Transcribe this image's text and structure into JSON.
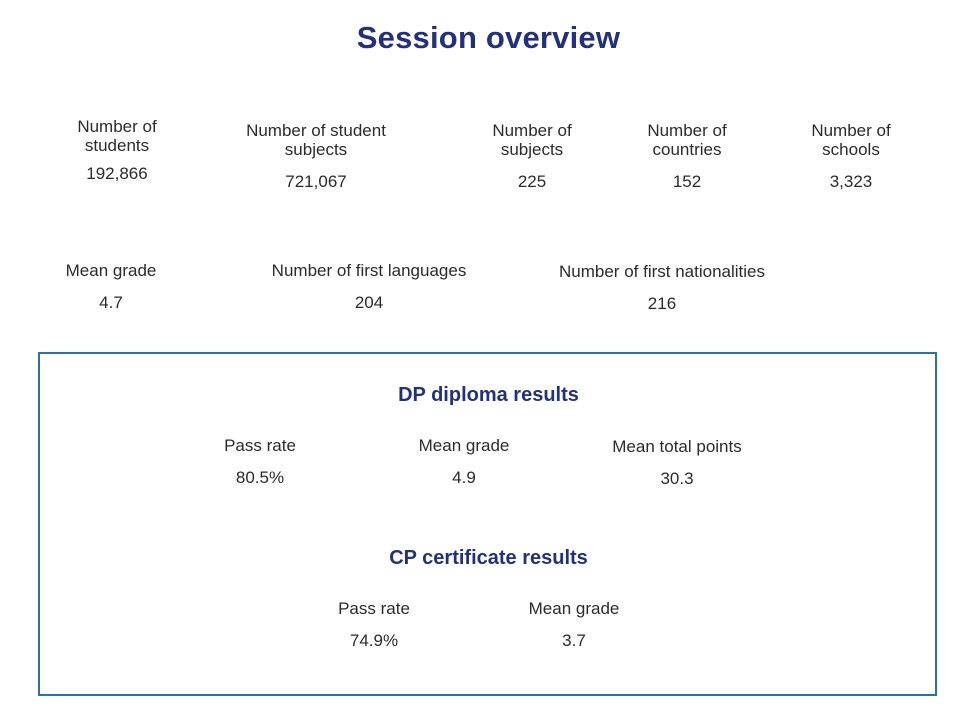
{
  "title": "Session overview",
  "overview_row1": [
    {
      "label": "Number of\nstudents",
      "value": "192,866"
    },
    {
      "label": "Number of student\nsubjects",
      "value": "721,067"
    },
    {
      "label": "Number of\nsubjects",
      "value": "225"
    },
    {
      "label": "Number of\ncountries",
      "value": "152"
    },
    {
      "label": "Number of\nschools",
      "value": "3,323"
    }
  ],
  "overview_row2": [
    {
      "label": "Mean grade",
      "value": "4.7"
    },
    {
      "label": "Number of first languages",
      "value": "204"
    },
    {
      "label": "Number of first nationalities",
      "value": "216"
    }
  ],
  "dp": {
    "heading": "DP diploma results",
    "stats": [
      {
        "label": "Pass rate",
        "value": "80.5%"
      },
      {
        "label": "Mean grade",
        "value": "4.9"
      },
      {
        "label": "Mean total points",
        "value": "30.3"
      }
    ]
  },
  "cp": {
    "heading": "CP certificate results",
    "stats": [
      {
        "label": "Pass rate",
        "value": "74.9%"
      },
      {
        "label": "Mean grade",
        "value": "3.7"
      }
    ]
  },
  "colors": {
    "heading": "#23317a",
    "box_border": "#2f6fa8",
    "text": "#2b2b2b"
  }
}
